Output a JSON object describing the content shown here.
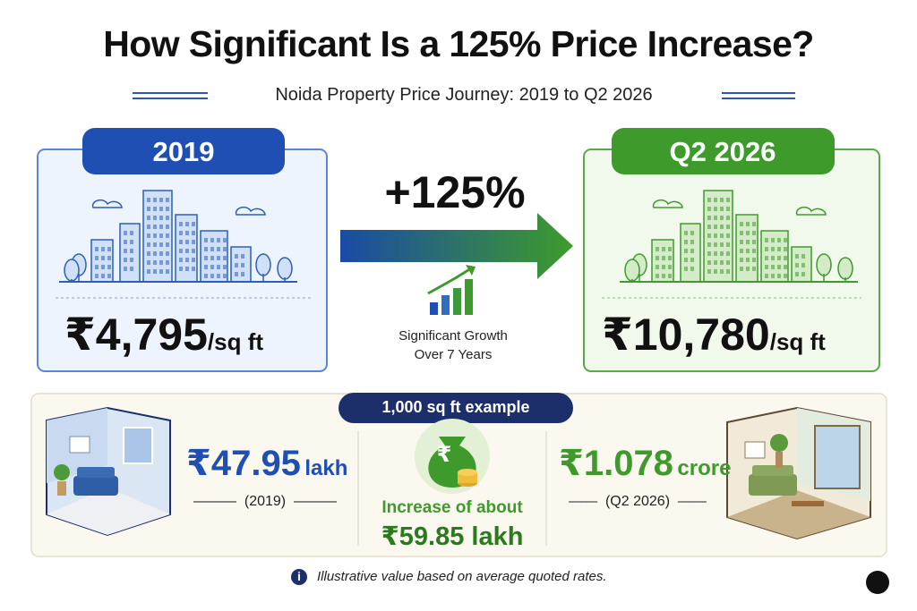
{
  "header": {
    "title": "How Significant Is a 125% Price Increase?",
    "subtitle": "Noida Property Price Journey: 2019 to Q2 2026"
  },
  "before": {
    "label": "2019",
    "price": "₹4,795",
    "unit": "/sq ft"
  },
  "change": {
    "value": "+125%",
    "note": [
      "Significant Growth",
      "Over 7 Years"
    ]
  },
  "after": {
    "label": "Q2 2026",
    "price": "₹10,780",
    "unit": "/sq ft"
  },
  "example": {
    "badge": "1,000 sq ft example",
    "before": {
      "amount": "₹47.95",
      "unit": "lakh",
      "period": "(2019)"
    },
    "increase": {
      "symbol": "₹",
      "label": "Increase of about",
      "amount": "₹59.85 lakh"
    },
    "after": {
      "amount": "₹1.078",
      "unit": "crore",
      "period": "(Q2 2026)"
    }
  },
  "footer": {
    "icon": "i",
    "note": "Illustrative value based on average quoted rates."
  }
}
